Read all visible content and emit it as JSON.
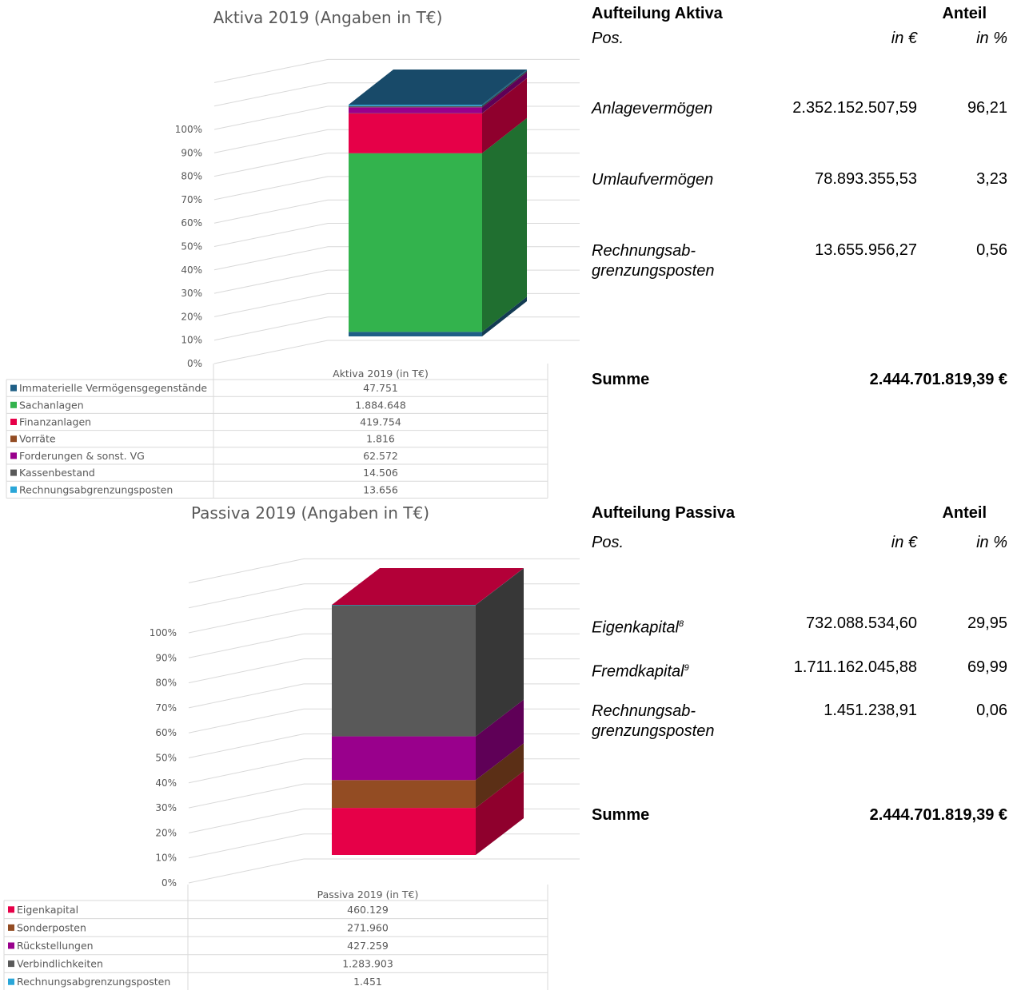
{
  "aktiva": {
    "chart_data": {
      "type": "bar",
      "stacked": "percent",
      "title": "Aktiva 2019 (Angaben in T€)",
      "category": "Aktiva 2019  (in T€)",
      "yticks": [
        "0%",
        "10%",
        "20%",
        "30%",
        "40%",
        "50%",
        "60%",
        "70%",
        "80%",
        "90%",
        "100%"
      ],
      "ylim": [
        0,
        100
      ],
      "series": [
        {
          "name": "Immaterielle Vermögensgegenstände",
          "value": 47751,
          "label": "47.751",
          "color": "#1F5F86"
        },
        {
          "name": "Sachanlagen",
          "value": 1884648,
          "label": "1.884.648",
          "color": "#33B34D"
        },
        {
          "name": "Finanzanlagen",
          "value": 419754,
          "label": "419.754",
          "color": "#E60048"
        },
        {
          "name": "Vorräte",
          "value": 1816,
          "label": "1.816",
          "color": "#934C23"
        },
        {
          "name": "Forderungen & sonst. VG",
          "value": 62572,
          "label": "62.572",
          "color": "#99008C"
        },
        {
          "name": "Kassenbestand",
          "value": 14506,
          "label": "14.506",
          "color": "#595959"
        },
        {
          "name": "Rechnungsabgrenzungsposten",
          "value": 13656,
          "label": "13.656",
          "color": "#2AA6D8"
        }
      ]
    },
    "panel": {
      "title": "Aufteilung Aktiva",
      "anteil": "Anteil",
      "pos": "Pos.",
      "in_eur": "in €",
      "in_pct": "in %",
      "rows": [
        {
          "label": "Anlagevermögen",
          "eur": "2.352.152.507,59",
          "pct": "96,21"
        },
        {
          "label": "Umlaufvermögen",
          "eur": "78.893.355,53",
          "pct": "3,23"
        },
        {
          "label": "Rechnungsab-",
          "label2": "grenzungsposten",
          "eur": "13.655.956,27",
          "pct": "0,56"
        }
      ],
      "sum_label": "Summe",
      "sum_value": "2.444.701.819,39 €"
    }
  },
  "passiva": {
    "chart_data": {
      "type": "bar",
      "stacked": "percent",
      "title": "Passiva 2019 (Angaben in T€)",
      "category": "Passiva 2019 (in T€)",
      "yticks": [
        "0%",
        "10%",
        "20%",
        "30%",
        "40%",
        "50%",
        "60%",
        "70%",
        "80%",
        "90%",
        "100%"
      ],
      "ylim": [
        0,
        100
      ],
      "series": [
        {
          "name": "Eigenkapital",
          "value": 460129,
          "label": "460.129",
          "color": "#E60048"
        },
        {
          "name": "Sonderposten",
          "value": 271960,
          "label": "271.960",
          "color": "#934C23"
        },
        {
          "name": "Rückstellungen",
          "value": 427259,
          "label": "427.259",
          "color": "#99008C"
        },
        {
          "name": "Verbindlichkeiten",
          "value": 1283903,
          "label": "1.283.903",
          "color": "#595959"
        },
        {
          "name": "Rechnungsabgrenzungsposten",
          "value": 1451,
          "label": "1.451",
          "color": "#2AA6D8"
        }
      ]
    },
    "panel": {
      "title": "Aufteilung Passiva",
      "anteil": "Anteil",
      "pos": "Pos.",
      "in_eur": "in €",
      "in_pct": "in %",
      "rows": [
        {
          "label": "Eigenkapital",
          "sup": "8",
          "eur": "732.088.534,60",
          "pct": "29,95"
        },
        {
          "label": "Fremdkapital",
          "sup": "9",
          "eur": "1.711.162.045,88",
          "pct": "69,99"
        },
        {
          "label": "Rechnungsab-",
          "label2": "grenzungsposten",
          "eur": "1.451.238,91",
          "pct": "0,06"
        }
      ],
      "sum_label": "Summe",
      "sum_value": "2.444.701.819,39 €"
    }
  }
}
